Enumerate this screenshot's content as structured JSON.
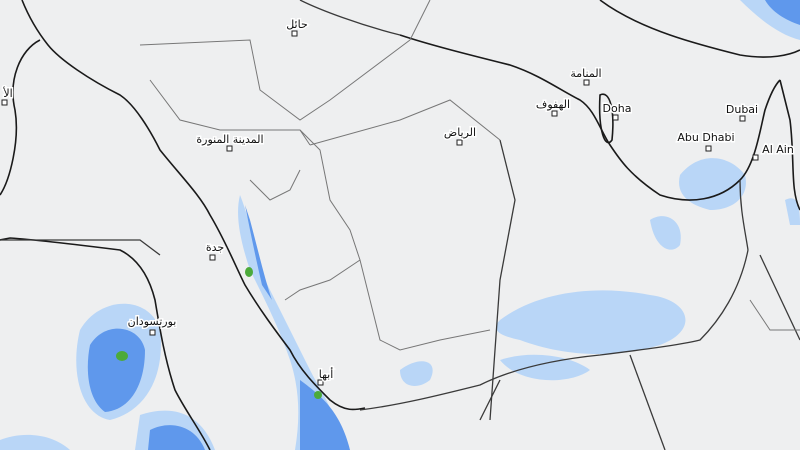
{
  "map": {
    "labels": [
      "حائل",
      "المدينة المنورة",
      "الرياض",
      "المنامة",
      "الهفوف",
      "Doha",
      "Dubai",
      "Abu Dhabi",
      "Al Ain",
      "جدة",
      "بورتسودان",
      "أبها",
      "الأ"
    ]
  }
}
